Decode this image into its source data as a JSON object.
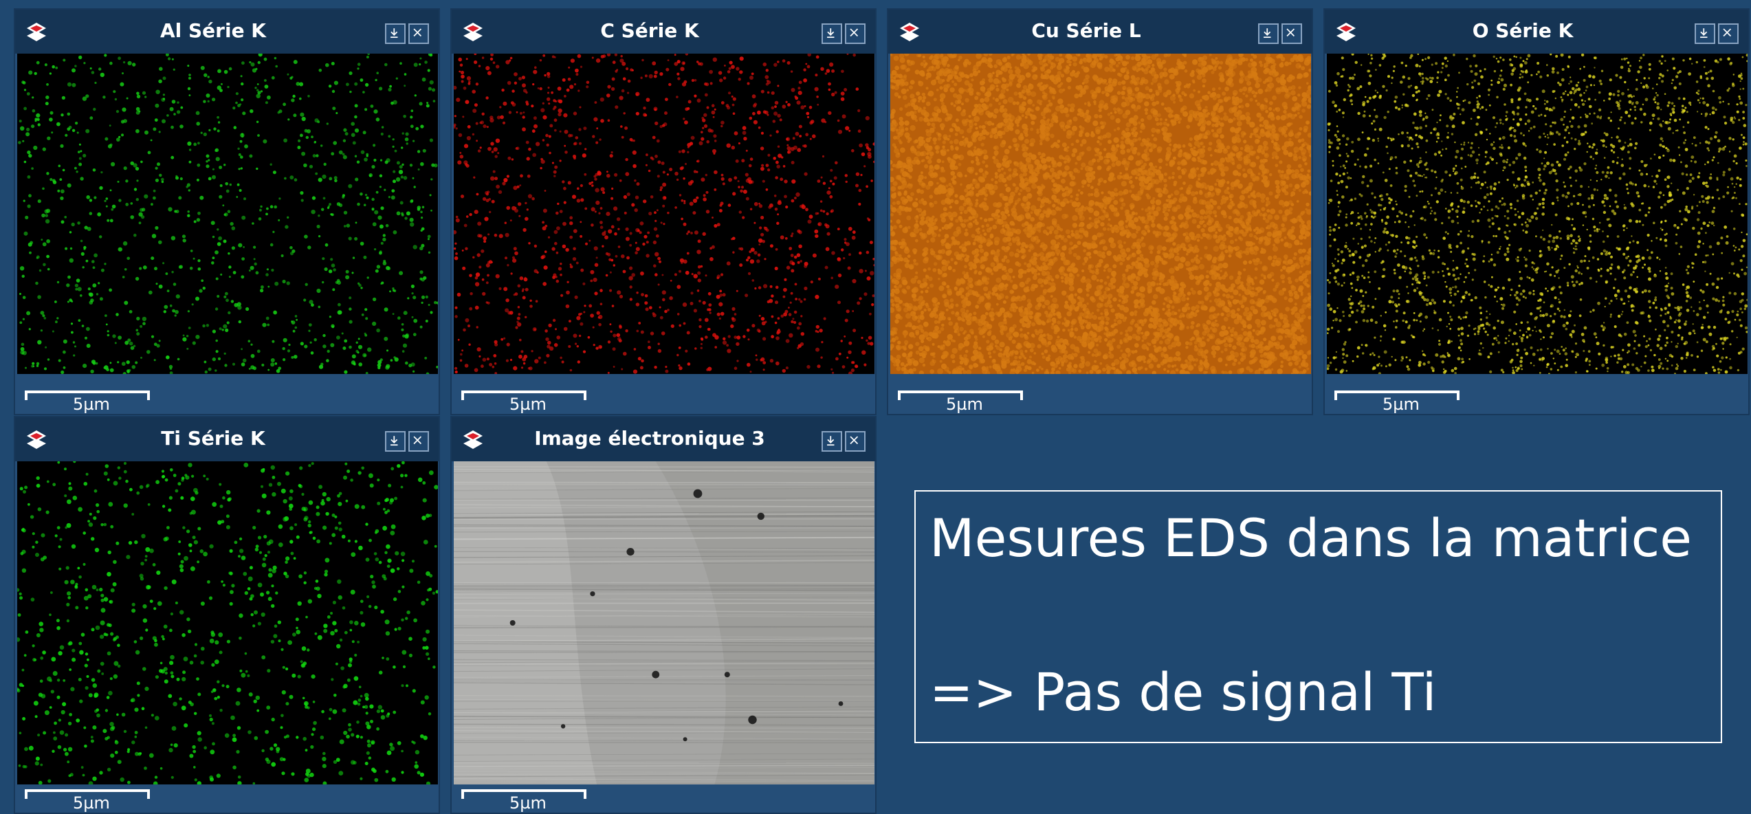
{
  "panels": [
    {
      "title": "Al Série K",
      "scale": "5µm",
      "icon": "layers-icon",
      "kind": "eds-map",
      "color": "#16d214"
    },
    {
      "title": "C Série K",
      "scale": "5µm",
      "icon": "layers-icon",
      "kind": "eds-map",
      "color": "#e5120d"
    },
    {
      "title": "Cu Série L",
      "scale": "5µm",
      "icon": "layers-icon",
      "kind": "eds-map",
      "color": "#d57a12"
    },
    {
      "title": "O Série K",
      "scale": "5µm",
      "icon": "layers-icon",
      "kind": "eds-map",
      "color": "#e6de23"
    },
    {
      "title": "Ti Série K",
      "scale": "5µm",
      "icon": "layers-icon",
      "kind": "eds-map",
      "color": "#12de10"
    },
    {
      "title": "Image électronique 3",
      "scale": "5µm",
      "icon": "layers-icon",
      "kind": "electron-image",
      "color": "#b8b8b5"
    }
  ],
  "callout": {
    "line1": "Mesures EDS dans la matrice",
    "line2": "=> Pas de signal Ti"
  }
}
